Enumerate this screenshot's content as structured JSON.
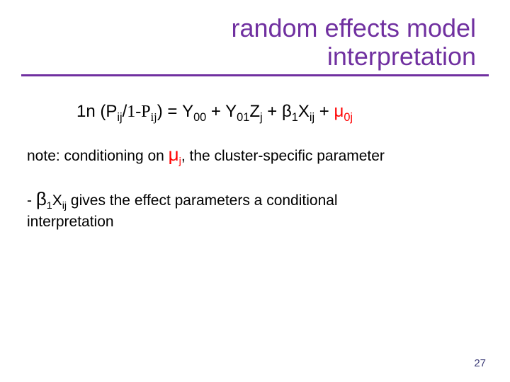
{
  "colors": {
    "title": "#7030a0",
    "rule": "#7030a0",
    "body": "#000000",
    "mu": "#ff0000",
    "page_num": "#40407a"
  },
  "fontsizes": {
    "title": 36,
    "equation": 24,
    "note": 21,
    "effect": 21,
    "mu_large": 26,
    "page_num": 15
  },
  "title": {
    "line1": "random effects model",
    "line2": "interpretation"
  },
  "equation": {
    "lead": "1n (P",
    "sub1": "ij",
    "mid1": "/",
    "oneMinusP": "1-P",
    "sub2": "ij",
    "mid2": ") = Υ",
    "sub3": "00",
    "mid3": " + Υ",
    "sub4": "01",
    "z": "Z",
    "sub5": "j",
    "mid4": " + β",
    "sub6": "1",
    "x": "X",
    "sub7": "ij",
    "mid5": " + ",
    "mu": "μ",
    "sub8": "0j"
  },
  "note": {
    "pre": "note: conditioning on ",
    "mu": "μ",
    "sub": "j",
    "post": ", the cluster-specific parameter"
  },
  "effect": {
    "dash": "- ",
    "beta": "β",
    "sub1": "1",
    "x": "X",
    "sub2": "ij",
    "rest1": " gives the effect parameters a conditional",
    "rest2": "interpretation"
  },
  "page_number": "27"
}
